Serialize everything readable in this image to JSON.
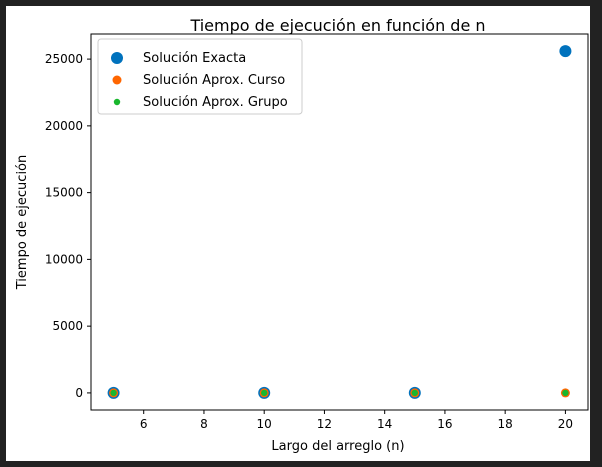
{
  "chart_data": {
    "type": "scatter",
    "title": "Tiempo de ejecución en función de n",
    "xlabel": "Largo del arreglo (n)",
    "ylabel": "Tiempo de ejecución",
    "xlim": [
      4.25,
      20.75
    ],
    "ylim": [
      -1280,
      26880
    ],
    "xticks": [
      6,
      8,
      10,
      12,
      14,
      16,
      18,
      20
    ],
    "yticks": [
      0,
      5000,
      10000,
      15000,
      20000,
      25000
    ],
    "grid": false,
    "legend_position": "top-left",
    "series": [
      {
        "name": "Solución Exacta",
        "color": "#0072bd",
        "x": [
          5,
          10,
          15,
          20
        ],
        "y": [
          0,
          0,
          0,
          25600
        ]
      },
      {
        "name": "Solución Aprox. Curso",
        "color": "#ff6600",
        "x": [
          5,
          10,
          15,
          20
        ],
        "y": [
          0,
          0,
          0,
          0
        ]
      },
      {
        "name": "Solución Aprox. Grupo",
        "color": "#19b72d",
        "x": [
          5,
          10,
          15,
          20
        ],
        "y": [
          0,
          0,
          0,
          0
        ]
      }
    ]
  }
}
